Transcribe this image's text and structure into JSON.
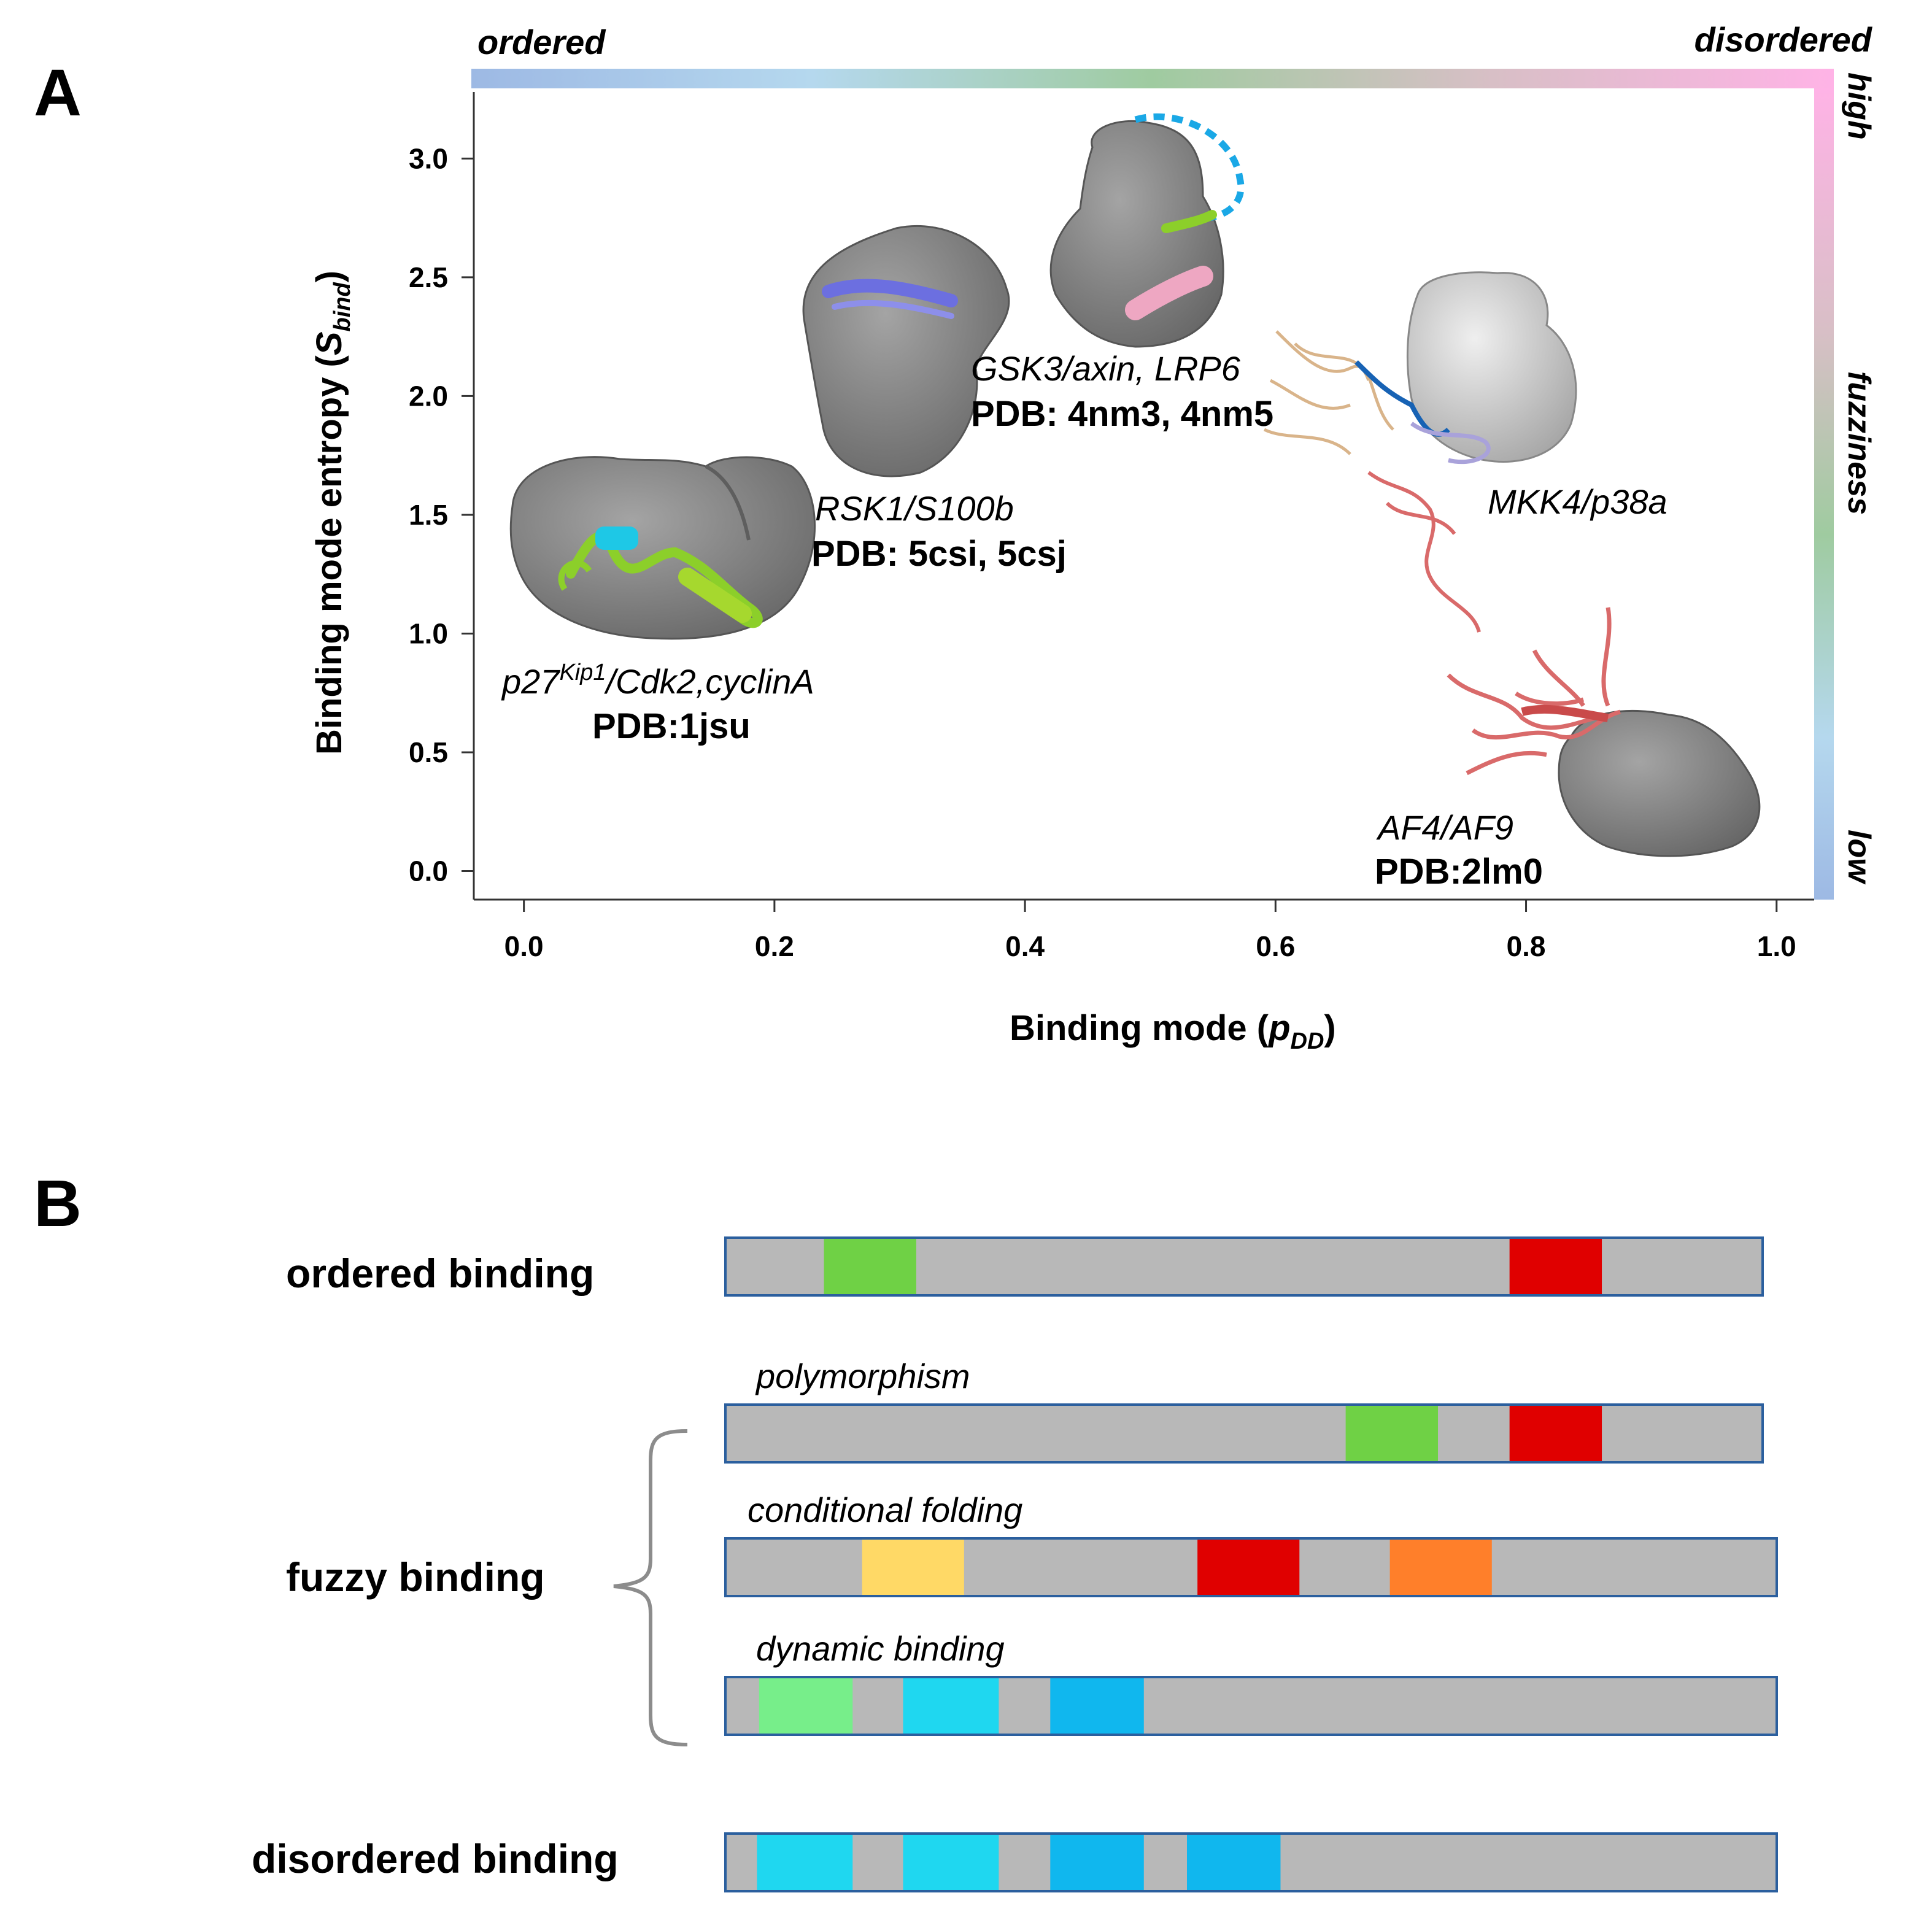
{
  "panel_a": {
    "letter": "A",
    "top_bar": {
      "left_label": "ordered",
      "right_label": "disordered",
      "colors": [
        "#9db9e4",
        "#b5d8ee",
        "#9fcba0",
        "#d8bfc6",
        "#ffb3e6"
      ]
    },
    "right_bar": {
      "top_label": "high",
      "mid_label": "fuzziness",
      "bottom_label": "low"
    },
    "structures": {
      "p27": {
        "name_main": "p27",
        "name_sup": "Kip1",
        "name_rest": "/Cdk2,cyclinA",
        "pdb": "PDB:1jsu"
      },
      "rsk1": {
        "name": "RSK1/S100b",
        "pdb": "PDB: 5csi, 5csj"
      },
      "gsk3": {
        "name": "GSK3/axin, LRP6",
        "pdb": "PDB: 4nm3, 4nm5"
      },
      "mkk4": {
        "name": "MKK4/p38a"
      },
      "af4": {
        "name": "AF4/AF9",
        "pdb": "PDB:2lm0"
      }
    },
    "colors": {
      "surface": "#8c8c8c",
      "surface_light": "#d2d2d2",
      "green": "#8ccf2a",
      "cyan": "#1ec8e6",
      "blue_helix": "#6c6fe0",
      "pink_helix": "#eea7c2",
      "dotted": "#1aa8e6",
      "salmon": "#d96a6a",
      "tan": "#d9b48a",
      "dark_blue": "#1762b4",
      "lavender": "#a9a2da"
    }
  },
  "chart_data": {
    "type": "scatter",
    "title": "",
    "xlabel": "Binding mode",
    "xlabel_sym": "p",
    "xlabel_sub": "DD",
    "ylabel": "Binding mode entropy",
    "ylabel_sym": "S",
    "ylabel_sub": "bind",
    "x_ticks": [
      "0.0",
      "0.2",
      "0.4",
      "0.6",
      "0.8",
      "1.0"
    ],
    "y_ticks": [
      "0.0",
      "0.5",
      "1.0",
      "1.5",
      "2.0",
      "2.5",
      "3.0"
    ],
    "xlim": [
      -0.04,
      1.03
    ],
    "ylim": [
      -0.12,
      3.28
    ],
    "points": [
      {
        "label": "p27Kip1/Cdk2,cyclinA",
        "x": 0.1,
        "y": 1.3
      },
      {
        "label": "RSK1/S100b",
        "x": 0.3,
        "y": 2.1
      },
      {
        "label": "GSK3/axin, LRP6",
        "x": 0.52,
        "y": 2.7
      },
      {
        "label": "MKK4/p38a",
        "x": 0.78,
        "y": 1.9
      },
      {
        "label": "AF4/AF9",
        "x": 0.95,
        "y": 0.4
      }
    ]
  },
  "panel_b": {
    "letter": "B",
    "ordered_label": "ordered binding",
    "fuzzy_label": "fuzzy binding",
    "disordered_label": "disordered binding",
    "rows": [
      {
        "label": "",
        "segments": [
          {
            "start": 0.095,
            "end": 0.184,
            "color": "#6fd145"
          },
          {
            "start": 0.756,
            "end": 0.845,
            "color": "#e00000"
          }
        ]
      },
      {
        "label": "polymorphism",
        "segments": [
          {
            "start": 0.598,
            "end": 0.687,
            "color": "#6fd145"
          },
          {
            "start": 0.756,
            "end": 0.845,
            "color": "#e00000"
          }
        ]
      },
      {
        "label": "conditional folding",
        "segments": [
          {
            "start": 0.13,
            "end": 0.227,
            "color": "#ffd966"
          },
          {
            "start": 0.449,
            "end": 0.546,
            "color": "#e00000"
          },
          {
            "start": 0.632,
            "end": 0.729,
            "color": "#ff7f2a"
          }
        ]
      },
      {
        "label": "dynamic binding",
        "segments": [
          {
            "start": 0.032,
            "end": 0.121,
            "color": "#77ee8a"
          },
          {
            "start": 0.169,
            "end": 0.26,
            "color": "#1fd7f0"
          },
          {
            "start": 0.309,
            "end": 0.398,
            "color": "#10b7ee"
          }
        ]
      },
      {
        "label": "",
        "segments": [
          {
            "start": 0.03,
            "end": 0.121,
            "color": "#1fd7f0"
          },
          {
            "start": 0.169,
            "end": 0.26,
            "color": "#1fd7f0"
          },
          {
            "start": 0.309,
            "end": 0.398,
            "color": "#10b7ee"
          },
          {
            "start": 0.439,
            "end": 0.528,
            "color": "#10b7ee"
          }
        ]
      }
    ],
    "bar_color": "#b8b8b8",
    "border_color": "#2b5f9e",
    "bracket_color": "#8c8c8c"
  }
}
